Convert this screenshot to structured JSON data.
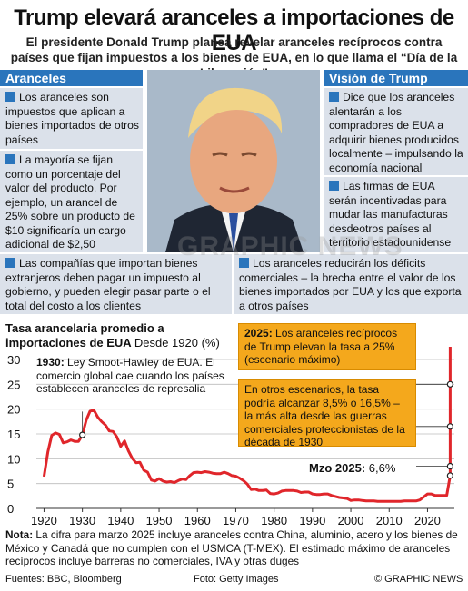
{
  "header": {
    "title": "Trump elevará aranceles a importaciones de EUA",
    "subtitle": "El presidente Donald Trump planea revelar aranceles recíprocos contra países que fijan impuestos a los bienes de EUA, en lo que llama el “Día de la Liberación”"
  },
  "left_column": {
    "heading": "Aranceles",
    "items": [
      "Los aranceles son impuestos que aplican a bienes importados de otros países",
      "La mayoría se fijan como un porcentaje del valor del producto. Por ejemplo, un arancel de 25% sobre un producto de $10 significaría un cargo adicional de $2,50"
    ]
  },
  "right_column": {
    "heading": "Visión de Trump",
    "items": [
      "Dice que los aranceles alentarán a los compradores de EUA a adquirir bienes producidos localmente – impulsando la economía nacional",
      "Las firmas de EUA serán incentivadas para mudar las manufacturas desdeotros países al territorio estadounidense"
    ]
  },
  "wide_boxes": [
    "Las compañías que importan bienes extranjeros deben pagar un impuesto al gobierno, y pueden elegir pasar parte o el total del costo a los clientes",
    "Los aranceles reducirán los déficits comerciales – la brecha entre el valor de los bienes importados por EUA y los que exporta a otros países"
  ],
  "chart_data": {
    "type": "line",
    "title": "Tasa arancelaria promedio a importaciones de EUA",
    "subtitle": "Desde 1920 (%)",
    "x_ticks": [
      "1920",
      "1930",
      "1940",
      "1950",
      "1960",
      "1970",
      "1980",
      "1990",
      "2000",
      "2010",
      "2020"
    ],
    "y_ticks": [
      "0",
      "5",
      "10",
      "15",
      "20",
      "25",
      "30"
    ],
    "xlim": [
      1918,
      2027
    ],
    "ylim": [
      0,
      30
    ],
    "grid": "horizontal",
    "color": "#e0262b",
    "series": [
      {
        "x": [
          1920,
          1921,
          1922,
          1923,
          1924,
          1925,
          1926,
          1927,
          1928,
          1929,
          1930,
          1931,
          1932,
          1933,
          1934,
          1935,
          1936,
          1937,
          1938,
          1939,
          1940,
          1941,
          1942,
          1943,
          1944,
          1945,
          1946,
          1947,
          1948,
          1949,
          1950,
          1951,
          1952,
          1953,
          1954,
          1955,
          1956,
          1957,
          1958,
          1959,
          1960,
          1961,
          1962,
          1963,
          1964,
          1965,
          1966,
          1967,
          1968,
          1969,
          1970,
          1971,
          1972,
          1973,
          1974,
          1975,
          1976,
          1977,
          1978,
          1979,
          1980,
          1981,
          1982,
          1983,
          1984,
          1985,
          1986,
          1987,
          1988,
          1989,
          1990,
          1991,
          1992,
          1993,
          1994,
          1995,
          1996,
          1997,
          1998,
          1999,
          2000,
          2001,
          2002,
          2003,
          2004,
          2005,
          2006,
          2007,
          2008,
          2009,
          2010,
          2011,
          2012,
          2013,
          2014,
          2015,
          2016,
          2017,
          2018,
          2019,
          2020,
          2021,
          2022,
          2023,
          2024,
          2025
        ],
        "y": [
          6.4,
          11.4,
          14.7,
          15.2,
          14.9,
          13.2,
          13.4,
          13.8,
          13.5,
          13.5,
          14.8,
          17.8,
          19.6,
          19.8,
          18.4,
          17.5,
          16.8,
          15.6,
          15.5,
          14.4,
          12.5,
          13.6,
          11.6,
          10.1,
          9.2,
          9.3,
          7.7,
          7.3,
          5.7,
          5.5,
          6.0,
          5.5,
          5.3,
          5.4,
          5.2,
          5.6,
          5.9,
          5.8,
          6.6,
          7.2,
          7.3,
          7.2,
          7.4,
          7.3,
          7.1,
          7.0,
          7.0,
          7.3,
          7.0,
          6.6,
          6.5,
          6.1,
          5.6,
          4.9,
          3.8,
          3.9,
          3.6,
          3.6,
          3.7,
          3.0,
          2.9,
          3.1,
          3.5,
          3.6,
          3.6,
          3.6,
          3.5,
          3.2,
          3.3,
          3.3,
          2.9,
          2.8,
          2.8,
          2.9,
          2.9,
          2.6,
          2.4,
          2.2,
          2.1,
          2.0,
          1.6,
          1.7,
          1.7,
          1.6,
          1.5,
          1.5,
          1.5,
          1.4,
          1.4,
          1.4,
          1.4,
          1.4,
          1.4,
          1.4,
          1.5,
          1.5,
          1.5,
          1.5,
          1.7,
          2.3,
          2.9,
          2.9,
          2.6,
          2.6,
          2.6,
          2.6
        ]
      }
    ],
    "jump": {
      "x": 2025.9,
      "from": 6.6,
      "to": 33
    },
    "markers": [
      {
        "x": 1930,
        "y": 14.8
      },
      {
        "x": 2025.9,
        "y": 6.6
      },
      {
        "x": 2025.9,
        "y": 8.5
      },
      {
        "x": 2025.9,
        "y": 16.5
      },
      {
        "x": 2025.9,
        "y": 25
      }
    ],
    "annotations": {
      "smoot_year": "1930:",
      "smoot_text": " Ley Smoot-Hawley de EUA. El comercio global cae cuando los países establecen aranceles de represalia",
      "max_year": "2025:",
      "max_text": " Los aranceles recíprocos de Trump elevan la tasa a 25% (escenario máximo)",
      "scenarios_text": "En otros escenarios, la tasa podría alcanzar 8,5% o 16,5% – la más alta desde las guerras comerciales proteccionistas de la década de 1930",
      "march_label": "Mzo 2025:",
      "march_value": " 6,6%"
    }
  },
  "note": {
    "label": "Nota:",
    "text": " La cifra para marzo 2025 incluye aranceles contra China, aluminio, acero y los bienes de México y Canadá que no cumplen con el USMCA (T-MEX). El estimado máximo de aranceles recíprocos incluye barreras no comerciales, IVA y otras duges"
  },
  "footer": {
    "sources": "Fuentes: BBC, Bloomberg",
    "photo": "Foto: Getty Images",
    "brand": "© GRAPHIC NEWS"
  },
  "watermark": "GRAPHIC NEWS"
}
